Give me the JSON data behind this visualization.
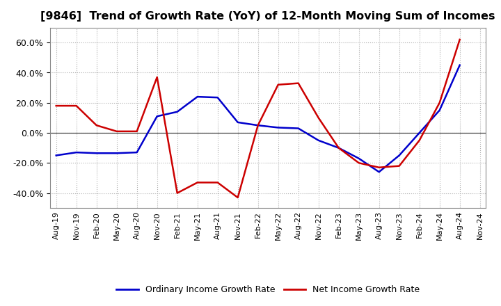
{
  "title": "[9846]  Trend of Growth Rate (YoY) of 12-Month Moving Sum of Incomes",
  "x_labels": [
    "Aug-19",
    "Nov-19",
    "Feb-20",
    "May-20",
    "Aug-20",
    "Nov-20",
    "Feb-21",
    "May-21",
    "Aug-21",
    "Nov-21",
    "Feb-22",
    "May-22",
    "Aug-22",
    "Nov-22",
    "Feb-23",
    "May-23",
    "Aug-23",
    "Nov-23",
    "Feb-24",
    "May-24",
    "Aug-24",
    "Nov-24"
  ],
  "ordinary_income": [
    -15.0,
    -13.0,
    -13.5,
    -13.5,
    -13.0,
    11.0,
    14.0,
    24.0,
    23.5,
    7.0,
    5.0,
    3.5,
    3.0,
    -5.0,
    -10.0,
    -17.0,
    -26.0,
    -15.0,
    0.0,
    15.0,
    45.0,
    null
  ],
  "net_income": [
    18.0,
    18.0,
    5.0,
    1.0,
    1.0,
    37.0,
    -40.0,
    -33.0,
    -33.0,
    -43.0,
    5.0,
    32.0,
    33.0,
    10.0,
    -10.0,
    -20.0,
    -23.0,
    -22.0,
    -5.0,
    20.0,
    62.0,
    null
  ],
  "ylim": [
    -50,
    70
  ],
  "yticks": [
    -40.0,
    -20.0,
    0.0,
    20.0,
    40.0,
    60.0
  ],
  "ordinary_color": "#0000cc",
  "net_color": "#cc0000",
  "background_color": "#ffffff",
  "grid_color": "#b0b0b0",
  "title_fontsize": 11.5,
  "legend_labels": [
    "Ordinary Income Growth Rate",
    "Net Income Growth Rate"
  ]
}
